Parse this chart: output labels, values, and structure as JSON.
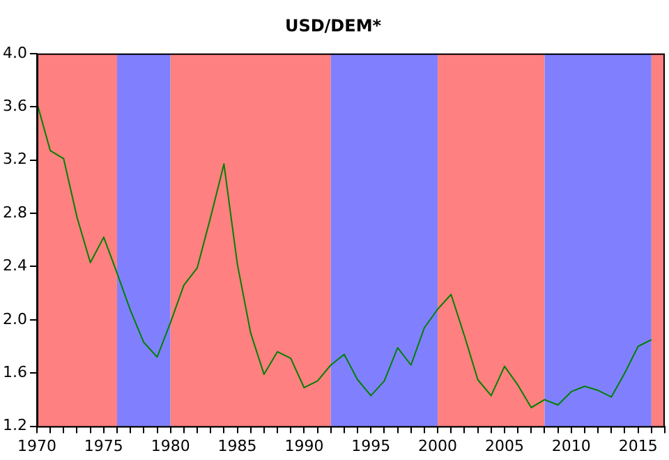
{
  "chart_data": {
    "type": "line",
    "title": "USD/DEM*",
    "x": [
      1970,
      1971,
      1972,
      1973,
      1974,
      1975,
      1976,
      1977,
      1978,
      1979,
      1980,
      1981,
      1982,
      1983,
      1984,
      1985,
      1986,
      1987,
      1988,
      1989,
      1990,
      1991,
      1992,
      1993,
      1994,
      1995,
      1996,
      1997,
      1998,
      1999,
      2000,
      2001,
      2002,
      2003,
      2004,
      2005,
      2006,
      2007,
      2008,
      2009,
      2010,
      2011,
      2012,
      2013,
      2014,
      2015,
      2016
    ],
    "series": [
      {
        "color": "#008000",
        "values": [
          3.63,
          3.27,
          3.21,
          2.77,
          2.43,
          2.62,
          2.35,
          2.07,
          1.83,
          1.72,
          1.98,
          2.26,
          2.39,
          2.77,
          3.17,
          2.42,
          1.9,
          1.59,
          1.76,
          1.71,
          1.49,
          1.54,
          1.66,
          1.74,
          1.55,
          1.43,
          1.54,
          1.79,
          1.66,
          1.94,
          2.08,
          2.19,
          1.88,
          1.55,
          1.43,
          1.65,
          1.51,
          1.34,
          1.4,
          1.36,
          1.46,
          1.5,
          1.47,
          1.42,
          1.6,
          1.8,
          1.85
        ]
      }
    ],
    "xlim": [
      1970,
      2017
    ],
    "xticks": [
      1970,
      {
        "value": 1971,
        "label": null
      },
      {
        "value": 1972,
        "label": null
      },
      {
        "value": 1973,
        "label": null
      },
      {
        "value": 1974,
        "label": null
      },
      1975,
      {
        "value": 1976,
        "label": null
      },
      {
        "value": 1977,
        "label": null
      },
      {
        "value": 1978,
        "label": null
      },
      {
        "value": 1979,
        "label": null
      },
      1980,
      {
        "value": 1981,
        "label": null
      },
      {
        "value": 1982,
        "label": null
      },
      {
        "value": 1983,
        "label": null
      },
      {
        "value": 1984,
        "label": null
      },
      1985,
      {
        "value": 1986,
        "label": null
      },
      {
        "value": 1987,
        "label": null
      },
      {
        "value": 1988,
        "label": null
      },
      {
        "value": 1989,
        "label": null
      },
      1990,
      {
        "value": 1991,
        "label": null
      },
      {
        "value": 1992,
        "label": null
      },
      {
        "value": 1993,
        "label": null
      },
      {
        "value": 1994,
        "label": null
      },
      1995,
      {
        "value": 1996,
        "label": null
      },
      {
        "value": 1997,
        "label": null
      },
      {
        "value": 1998,
        "label": null
      },
      {
        "value": 1999,
        "label": null
      },
      2000,
      {
        "value": 2001,
        "label": null
      },
      {
        "value": 2002,
        "label": null
      },
      {
        "value": 2003,
        "label": null
      },
      {
        "value": 2004,
        "label": null
      },
      2005,
      {
        "value": 2006,
        "label": null
      },
      {
        "value": 2007,
        "label": null
      },
      {
        "value": 2008,
        "label": null
      },
      {
        "value": 2009,
        "label": null
      },
      2010,
      {
        "value": 2011,
        "label": null
      },
      {
        "value": 2012,
        "label": null
      },
      {
        "value": 2013,
        "label": null
      },
      {
        "value": 2014,
        "label": null
      },
      2015,
      {
        "value": 2016,
        "label": null
      },
      {
        "value": 2017,
        "label": null
      }
    ],
    "ylim": [
      1.2,
      4.0
    ],
    "yticks": [
      1.2,
      1.6,
      {
        "value": 2.0,
        "label": "2.0"
      },
      2.4,
      2.8,
      3.2,
      3.6,
      {
        "value": 4.0,
        "label": "4.0"
      }
    ],
    "bands": [
      {
        "axis": "x",
        "from": 1970,
        "to": 1976,
        "color": "#ff8080"
      },
      {
        "axis": "x",
        "from": 1976,
        "to": 1980,
        "color": "#8080ff"
      },
      {
        "axis": "x",
        "from": 1980,
        "to": 1992,
        "color": "#ff8080"
      },
      {
        "axis": "x",
        "from": 1992,
        "to": 2000,
        "color": "#8080ff"
      },
      {
        "axis": "x",
        "from": 2000,
        "to": 2008,
        "color": "#ff8080"
      },
      {
        "axis": "x",
        "from": 2008,
        "to": 2016,
        "color": "#8080ff"
      },
      {
        "axis": "x",
        "from": 2016,
        "to": 2017,
        "color": "#ff8080"
      }
    ],
    "grid": false,
    "legend": false,
    "marker": "none",
    "line_style": "solid"
  }
}
